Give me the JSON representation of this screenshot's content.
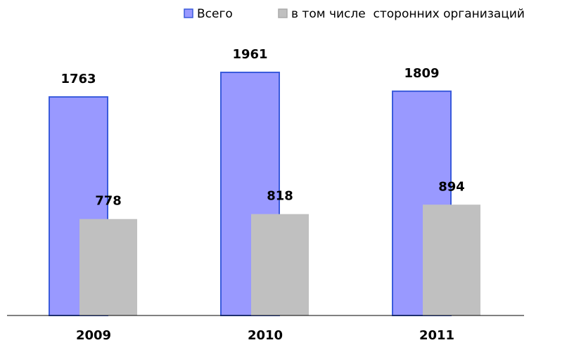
{
  "chart_data": {
    "type": "bar",
    "categories": [
      "2009",
      "2010",
      "2011"
    ],
    "series": [
      {
        "name": "Всего",
        "color": "#9999ff",
        "values": [
          1763,
          1961,
          1809
        ]
      },
      {
        "name": "в том числе  сторонних организаций",
        "color": "#c0c0c0",
        "values": [
          778,
          818,
          894
        ]
      }
    ]
  }
}
